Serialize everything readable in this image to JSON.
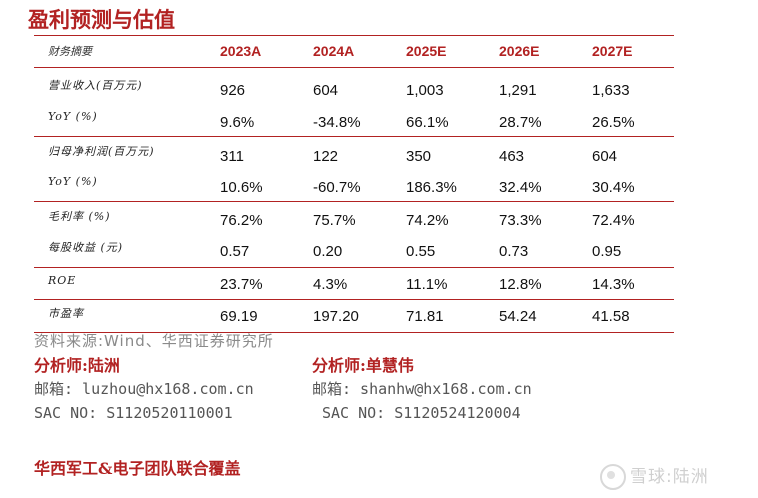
{
  "title": "盈利预测与估值",
  "table": {
    "header_label": "财务摘要",
    "years": [
      "2023A",
      "2024A",
      "2025E",
      "2026E",
      "2027E"
    ],
    "rows": [
      {
        "label": "营业收入(百万元)",
        "values": [
          "926",
          "604",
          "1,003",
          "1,291",
          "1,633"
        ]
      },
      {
        "label": "YoY (%)",
        "values": [
          "9.6%",
          "-34.8%",
          "66.1%",
          "28.7%",
          "26.5%"
        ]
      },
      {
        "label": "归母净利润(百万元)",
        "values": [
          "311",
          "122",
          "350",
          "463",
          "604"
        ]
      },
      {
        "label": "YoY (%)",
        "values": [
          "10.6%",
          "-60.7%",
          "186.3%",
          "32.4%",
          "30.4%"
        ]
      },
      {
        "label": "毛利率 (%)",
        "values": [
          "76.2%",
          "75.7%",
          "74.2%",
          "73.3%",
          "72.4%"
        ]
      },
      {
        "label": "每股收益 (元)",
        "values": [
          "0.57",
          "0.20",
          "0.55",
          "0.73",
          "0.95"
        ]
      },
      {
        "label": "ROE",
        "values": [
          "23.7%",
          "4.3%",
          "11.1%",
          "12.8%",
          "14.3%"
        ]
      },
      {
        "label": "市盈率",
        "values": [
          "69.19",
          "197.20",
          "71.81",
          "54.24",
          "41.58"
        ]
      }
    ]
  },
  "source": "资料来源:Wind、华西证券研究所",
  "analysts": [
    {
      "name": "分析师:陆洲",
      "email": "邮箱: luzhou@hx168.com.cn",
      "sac": "SAC NO: S1120520110001"
    },
    {
      "name": "分析师:单慧伟",
      "email": "邮箱: shanhw@hx168.com.cn",
      "sac": "SAC NO: S1120524120004"
    }
  ],
  "footer_team": "华西军工&电子团队联合覆盖",
  "watermark": "雪球:陆洲"
}
